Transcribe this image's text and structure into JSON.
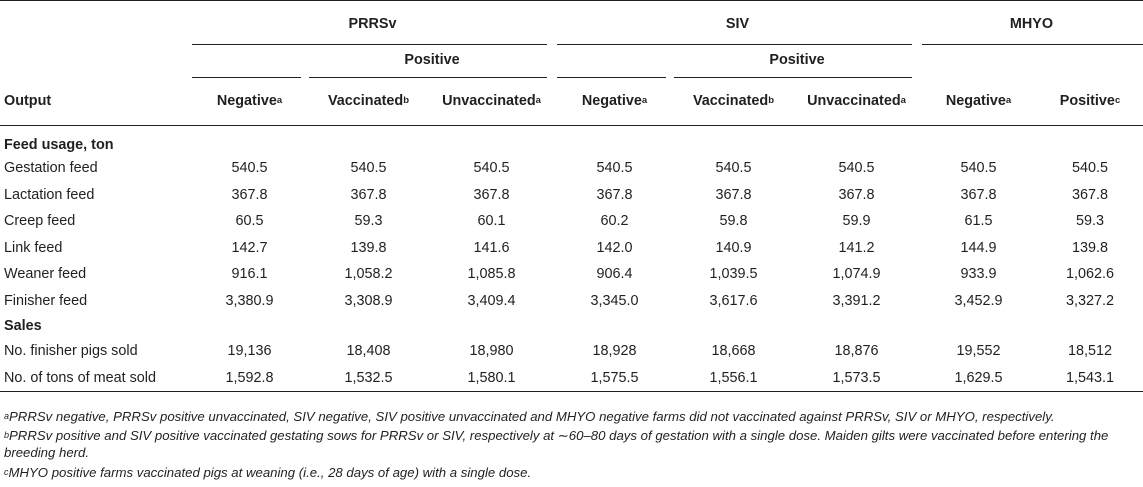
{
  "table": {
    "groups": [
      "PRRSv",
      "SIV",
      "MHYO"
    ],
    "positive_label": "Positive",
    "output_label": "Output",
    "columns": [
      {
        "label": "Negative",
        "sup": "a"
      },
      {
        "label": "Vaccinated",
        "sup": "b"
      },
      {
        "label": "Unvaccinated",
        "sup": "a"
      },
      {
        "label": "Negative",
        "sup": "a"
      },
      {
        "label": "Vaccinated",
        "sup": "b"
      },
      {
        "label": "Unvaccinated",
        "sup": "a"
      },
      {
        "label": "Negative",
        "sup": "a"
      },
      {
        "label": "Positive",
        "sup": "c"
      }
    ],
    "sections": [
      {
        "title": "Feed usage, ton",
        "rows": [
          {
            "label": "Gestation feed",
            "values": [
              "540.5",
              "540.5",
              "540.5",
              "540.5",
              "540.5",
              "540.5",
              "540.5",
              "540.5"
            ]
          },
          {
            "label": "Lactation feed",
            "values": [
              "367.8",
              "367.8",
              "367.8",
              "367.8",
              "367.8",
              "367.8",
              "367.8",
              "367.8"
            ]
          },
          {
            "label": "Creep feed",
            "values": [
              "60.5",
              "59.3",
              "60.1",
              "60.2",
              "59.8",
              "59.9",
              "61.5",
              "59.3"
            ]
          },
          {
            "label": "Link feed",
            "values": [
              "142.7",
              "139.8",
              "141.6",
              "142.0",
              "140.9",
              "141.2",
              "144.9",
              "139.8"
            ]
          },
          {
            "label": "Weaner feed",
            "values": [
              "916.1",
              "1,058.2",
              "1,085.8",
              "906.4",
              "1,039.5",
              "1,074.9",
              "933.9",
              "1,062.6"
            ]
          },
          {
            "label": "Finisher feed",
            "values": [
              "3,380.9",
              "3,308.9",
              "3,409.4",
              "3,345.0",
              "3,617.6",
              "3,391.2",
              "3,452.9",
              "3,327.2"
            ]
          }
        ]
      },
      {
        "title": "Sales",
        "rows": [
          {
            "label": "No. finisher pigs sold",
            "values": [
              "19,136",
              "18,408",
              "18,980",
              "18,928",
              "18,668",
              "18,876",
              "19,552",
              "18,512"
            ]
          },
          {
            "label": "No. of tons of meat sold",
            "values": [
              "1,592.8",
              "1,532.5",
              "1,580.1",
              "1,575.5",
              "1,556.1",
              "1,573.5",
              "1,629.5",
              "1,543.1"
            ]
          }
        ]
      }
    ]
  },
  "footnotes": [
    {
      "mark": "a",
      "text": "PRRSv negative, PRRSv positive unvaccinated, SIV negative, SIV positive unvaccinated and MHYO negative farms did not vaccinated against PRRSv, SIV or MHYO, respectively."
    },
    {
      "mark": "b",
      "text": "PRRSv positive and SIV positive vaccinated gestating sows for PRRSv or SIV, respectively at ∼60–80 days of gestation with a single dose. Maiden gilts were vaccinated before entering the breeding herd."
    },
    {
      "mark": "c",
      "text": "MHYO positive farms vaccinated pigs at weaning (i.e., 28 days of age) with a single dose."
    }
  ]
}
